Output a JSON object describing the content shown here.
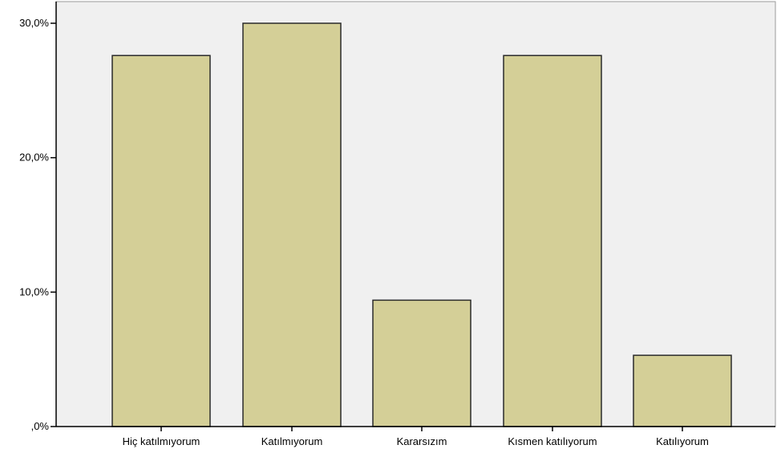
{
  "chart_data": {
    "type": "bar",
    "title": "",
    "xlabel": "",
    "ylabel": "",
    "categories": [
      "Hiç katılmıyorum",
      "Katılmıyorum",
      "Kararsızım",
      "Kısmen katılıyorum",
      "Katılıyorum"
    ],
    "values": [
      27.6,
      30.0,
      9.4,
      27.6,
      5.3
    ],
    "ylim": [
      0,
      30
    ],
    "yticks": [
      0,
      10,
      20,
      30
    ],
    "ytick_labels": [
      ",0%",
      "10,0%",
      "20,0%",
      "30,0%"
    ],
    "grid": false,
    "legend": "none",
    "colors": {
      "plot_background": "#f0f0f0",
      "bar_fill": "#d4cf97",
      "bar_stroke": "#2a2a2a",
      "axis": "#000000"
    }
  }
}
